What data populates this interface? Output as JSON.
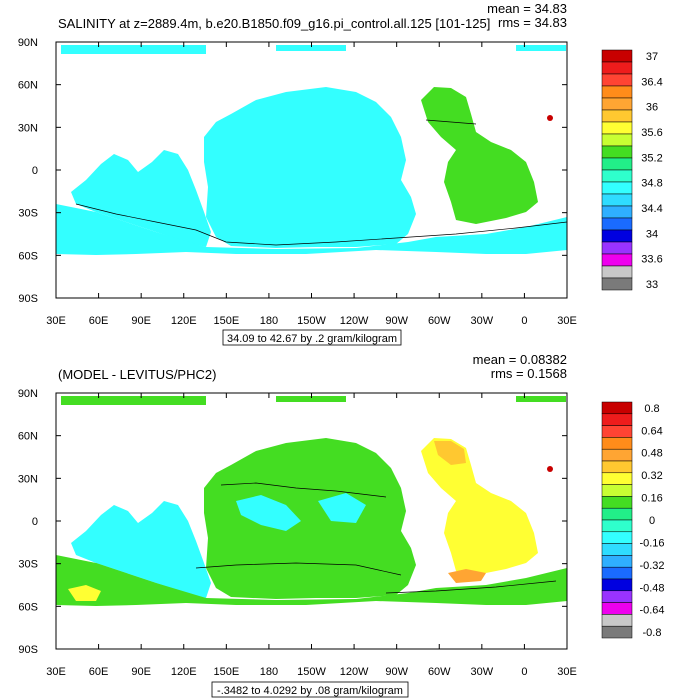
{
  "chart_data": [
    {
      "type": "heatmap",
      "title": "SALINITY at z=2889.4m, b.e20.B1850.f09_g16.pi_control.all.125 [101-125]",
      "stats": {
        "mean": "mean = 34.83",
        "rms": "rms = 34.83"
      },
      "subtitle": "34.09 to 42.67 by .2 gram/kilogram",
      "x_ticks": [
        "30E",
        "60E",
        "90E",
        "120E",
        "150E",
        "180",
        "150W",
        "120W",
        "90W",
        "60W",
        "30W",
        "0",
        "30E"
      ],
      "y_ticks": [
        "90N",
        "60N",
        "30N",
        "0",
        "30S",
        "60S",
        "90S"
      ],
      "colorbar": {
        "labels": [
          "37",
          "36.4",
          "36",
          "35.6",
          "35.2",
          "34.8",
          "34.4",
          "34",
          "33.6",
          "33"
        ],
        "colors": [
          "#c80000",
          "#ee1c1c",
          "#ff4433",
          "#ff8c1a",
          "#ffa533",
          "#ffc830",
          "#ffff33",
          "#c8ff33",
          "#44dd22",
          "#22ee88",
          "#2fffcc",
          "#33ffff",
          "#2fdcff",
          "#2fafff",
          "#1a6bff",
          "#0000e0",
          "#9933ff",
          "#ee00ee",
          "#c8c8c8",
          "#7a7a7a"
        ]
      },
      "field": {
        "dominant": "34.8",
        "atlantic": "35.0-35.2",
        "mediterranean": "37"
      }
    },
    {
      "type": "heatmap",
      "title": "(MODEL - LEVITUS/PHC2)",
      "stats": {
        "mean": "mean = 0.08382",
        "rms": "rms = 0.1568"
      },
      "subtitle": "-.3482 to 4.0292 by .08 gram/kilogram",
      "x_ticks": [
        "30E",
        "60E",
        "90E",
        "120E",
        "150E",
        "180",
        "150W",
        "120W",
        "90W",
        "60W",
        "30W",
        "0",
        "30E"
      ],
      "y_ticks": [
        "90N",
        "60N",
        "30N",
        "0",
        "30S",
        "60S",
        "90S"
      ],
      "colorbar": {
        "labels": [
          "0.8",
          "0.64",
          "0.48",
          "0.32",
          "0.16",
          "0",
          "-0.16",
          "-0.32",
          "-0.48",
          "-0.64",
          "-0.8"
        ],
        "colors": [
          "#c80000",
          "#ee1c1c",
          "#ff4433",
          "#ff8c1a",
          "#ffa533",
          "#ffc830",
          "#ffff33",
          "#c8ff33",
          "#44dd22",
          "#22ee88",
          "#2fffcc",
          "#33ffff",
          "#2fdcff",
          "#2fafff",
          "#1a6bff",
          "#0000e0",
          "#9933ff",
          "#ee00ee",
          "#c8c8c8",
          "#7a7a7a"
        ]
      },
      "field": {
        "dominant": "0 to 0.16",
        "atlantic": "0.16 to 0.32",
        "mediterranean": "0.8"
      }
    }
  ]
}
